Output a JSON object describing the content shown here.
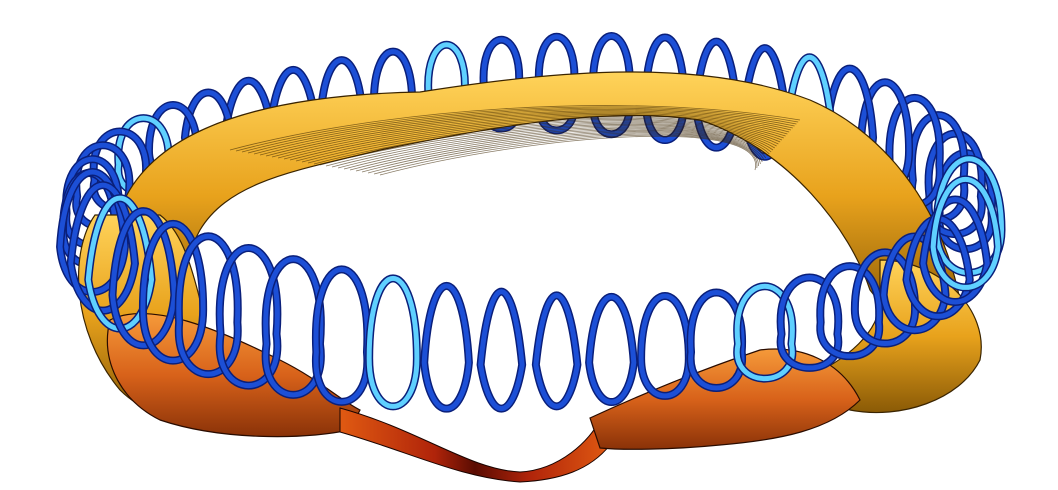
{
  "image": {
    "subject": "stellarator-plasma-with-modular-coils",
    "background_color": "#ffffff",
    "colors": {
      "plasma_gold": "#e8a21c",
      "plasma_gold_light": "#ffd35a",
      "plasma_gold_dark": "#8a5a06",
      "plasma_orange": "#e05a12",
      "plasma_red": "#b0240a",
      "plasma_dark_red": "#5a0c02",
      "coil_blue": "#1c4fd6",
      "coil_blue_dark": "#0a1f7a",
      "coil_highlight": "#5fd0ff"
    },
    "coil_count": 50
  }
}
